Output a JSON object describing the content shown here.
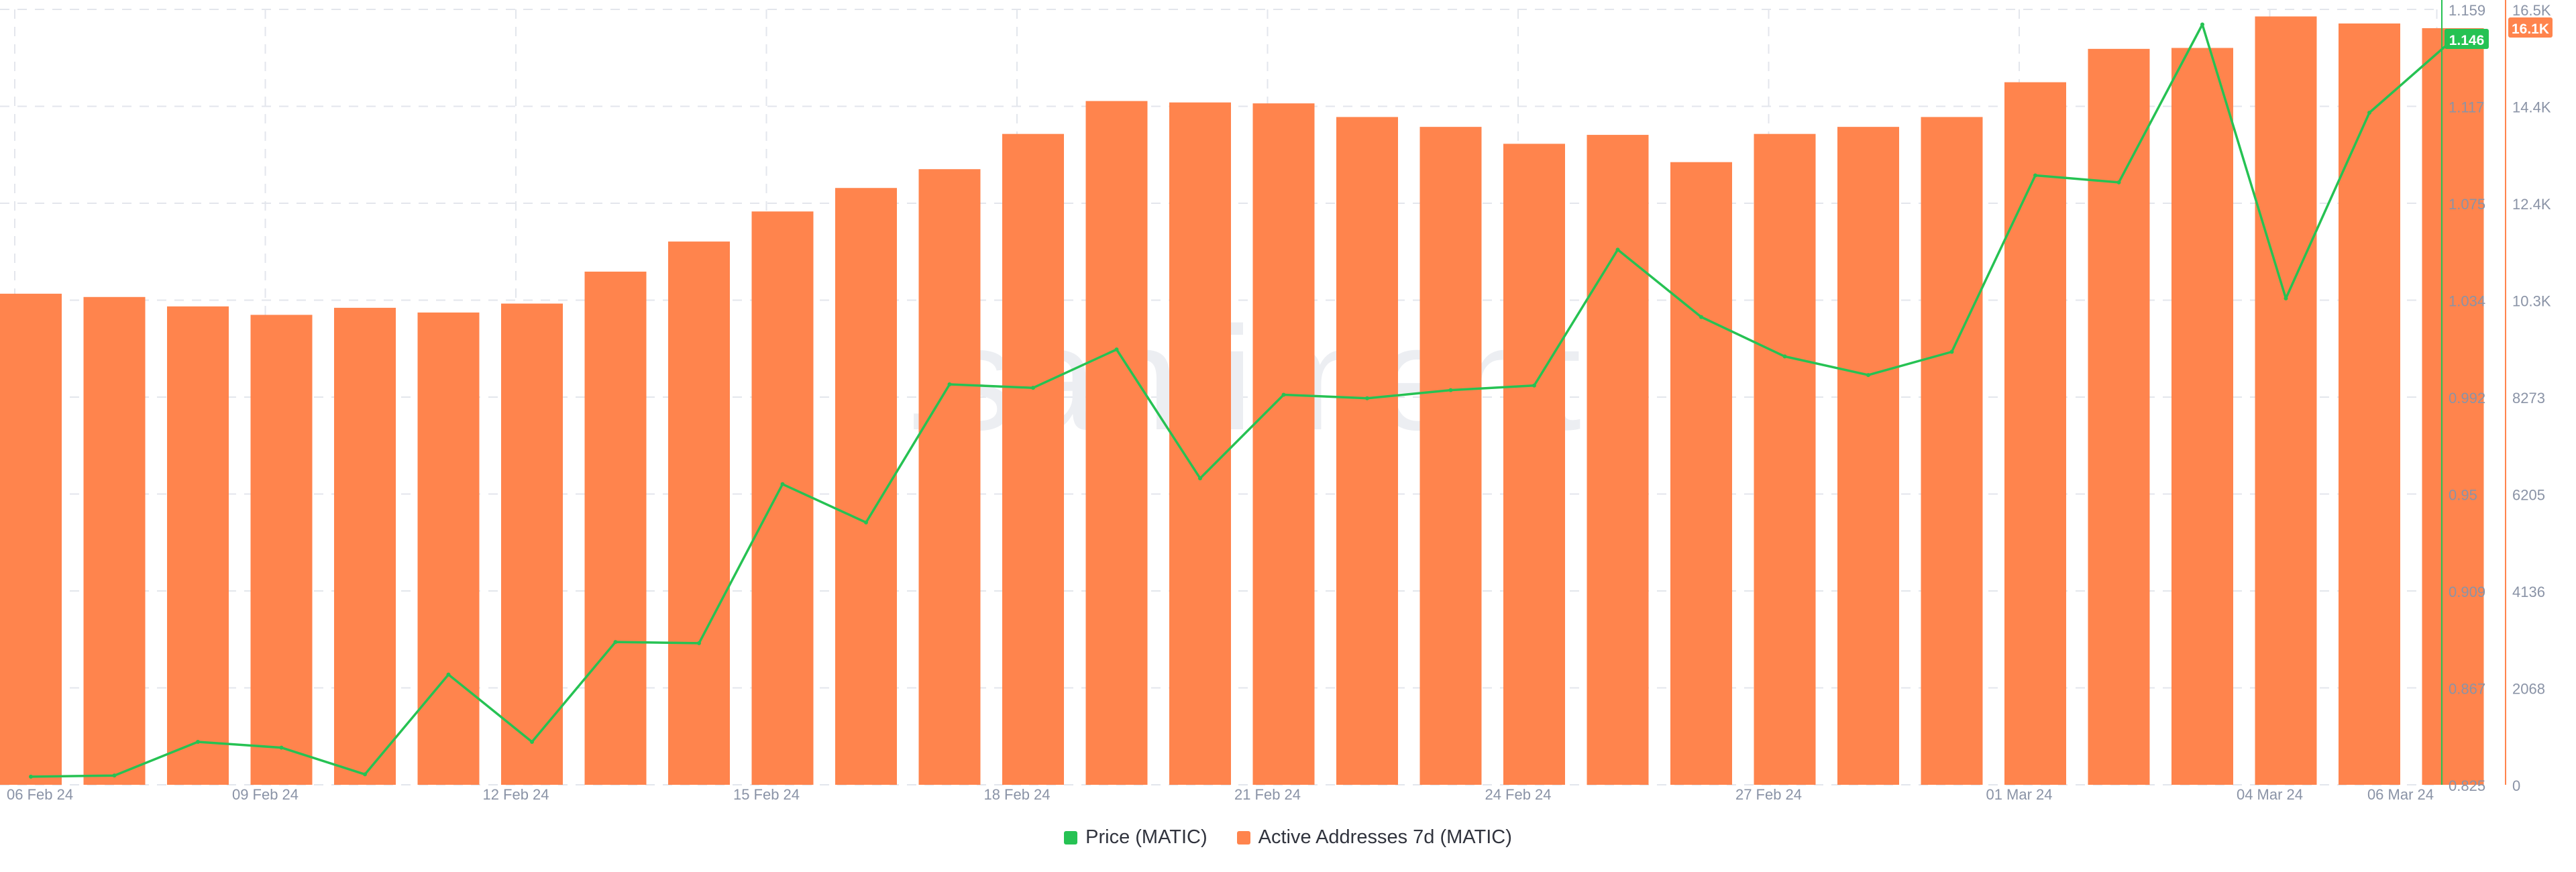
{
  "chart_data": {
    "type": "bar",
    "x_ticks": [
      "06 Feb 24",
      "09 Feb 24",
      "12 Feb 24",
      "15 Feb 24",
      "18 Feb 24",
      "21 Feb 24",
      "24 Feb 24",
      "27 Feb 24",
      "01 Mar 24",
      "04 Mar 24",
      "06 Mar 24"
    ],
    "series": [
      {
        "name": "Price (MATIC)",
        "type": "line",
        "color": "#26c253",
        "axis": "left",
        "values": [
          0.8285,
          0.829,
          0.8435,
          0.841,
          0.8295,
          0.8725,
          0.8435,
          0.8865,
          0.886,
          0.9545,
          0.938,
          0.9975,
          0.996,
          1.0125,
          0.957,
          0.993,
          0.9915,
          0.995,
          0.997,
          1.0555,
          1.0265,
          1.0095,
          1.0015,
          1.0115,
          1.0875,
          1.0845,
          1.1525,
          1.0345,
          1.1145,
          1.146
        ]
      },
      {
        "name": "Active Addresses 7d (MATIC)",
        "type": "bar",
        "color": "#ff844d",
        "axis": "right",
        "values": [
          10450,
          10380,
          10180,
          10000,
          10150,
          10050,
          10240,
          10920,
          11560,
          12200,
          12700,
          13100,
          13850,
          14550,
          14520,
          14500,
          14210,
          14000,
          13640,
          13830,
          13250,
          13850,
          14000,
          14210,
          14950,
          15660,
          15680,
          16350,
          16200,
          16100
        ]
      }
    ],
    "y_left": {
      "ticks": [
        "0.825",
        "0.867",
        "0.909",
        "0.95",
        "0.992",
        "1.034",
        "1.075",
        "1.117",
        "1.159"
      ],
      "range": [
        0.825,
        1.159
      ]
    },
    "y_right": {
      "ticks": [
        "0",
        "2068",
        "4136",
        "6205",
        "8273",
        "10.3K",
        "12.4K",
        "14.4K",
        "16.5K"
      ],
      "range": [
        0,
        16500
      ]
    },
    "current_price_label": "1.146",
    "current_active_label": "16.1K",
    "grid": true,
    "legend_position": "bottom-center"
  }
}
